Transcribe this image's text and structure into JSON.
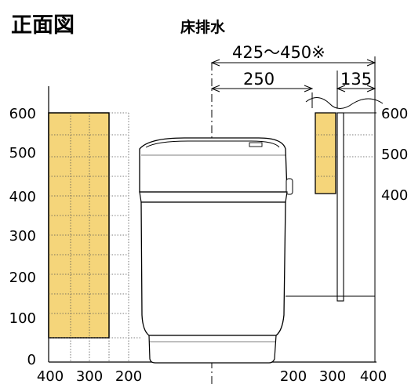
{
  "title": "正面図",
  "subtitle": "床排水",
  "dimensions": {
    "overall": "425～450※",
    "center_to_wall": "250",
    "wall_offset": "135"
  },
  "y_axis_left": [
    "600",
    "500",
    "400",
    "300",
    "200",
    "100",
    "0"
  ],
  "y_axis_right": [
    "600",
    "500",
    "400"
  ],
  "x_axis_left": [
    "400",
    "300",
    "200"
  ],
  "x_axis_right": [
    "200",
    "300",
    "400"
  ],
  "colors": {
    "area_fill": "#f5d57a",
    "line": "#000000",
    "grid_dot": "#555555"
  }
}
